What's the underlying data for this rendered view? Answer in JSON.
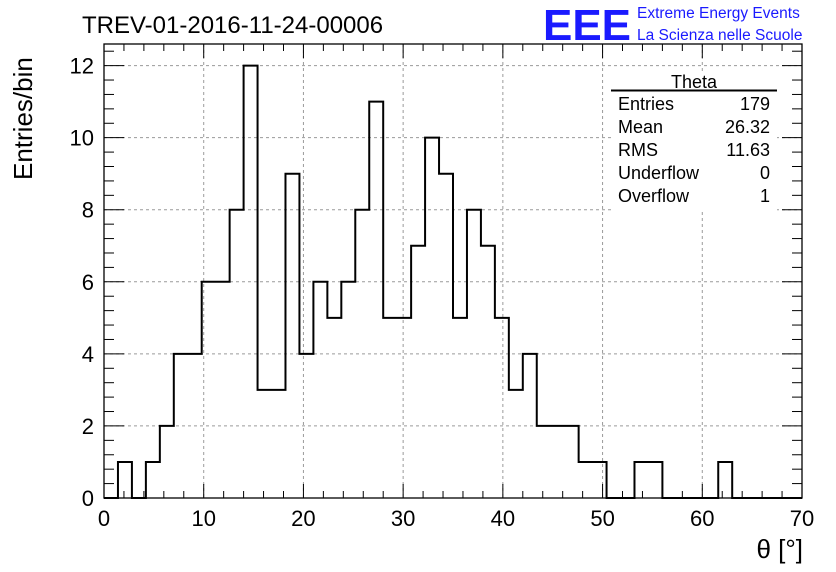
{
  "chart_data": {
    "type": "bar",
    "title": "TREV-01-2016-11-24-00006",
    "xlabel": "θ [°]",
    "ylabel": "Entries/bin",
    "xlim": [
      0,
      70
    ],
    "ylim": [
      0,
      12.6
    ],
    "x_ticks": [
      "0",
      "10",
      "20",
      "30",
      "40",
      "50",
      "60",
      "70"
    ],
    "y_ticks": [
      "0",
      "2",
      "4",
      "6",
      "8",
      "10",
      "12"
    ],
    "grid": true,
    "bin_width": 1.4,
    "bin_edges_start": 0,
    "values": [
      0,
      1,
      0,
      1,
      2,
      4,
      4,
      6,
      6,
      8,
      12,
      3,
      3,
      9,
      4,
      6,
      5,
      6,
      8,
      11,
      5,
      5,
      7,
      10,
      9,
      5,
      8,
      7,
      5,
      3,
      4,
      2,
      2,
      2,
      1,
      1,
      0,
      0,
      1,
      1,
      0,
      0,
      0,
      0,
      1,
      0,
      0,
      0,
      0,
      0
    ],
    "stats_box": {
      "title": "Theta",
      "rows": [
        {
          "label": "Entries",
          "value": "179"
        },
        {
          "label": "Mean",
          "value": "26.32"
        },
        {
          "label": "RMS",
          "value": "11.63"
        },
        {
          "label": "Underflow",
          "value": "0"
        },
        {
          "label": "Overflow",
          "value": "1"
        }
      ]
    },
    "logo": {
      "mark": "EEE",
      "line1": "Extreme Energy Events",
      "line2": "La Scienza nelle Scuole"
    },
    "colors": {
      "histogram": "#000000",
      "grid": "#9a9a9a",
      "logo": "#1a1aff"
    }
  }
}
